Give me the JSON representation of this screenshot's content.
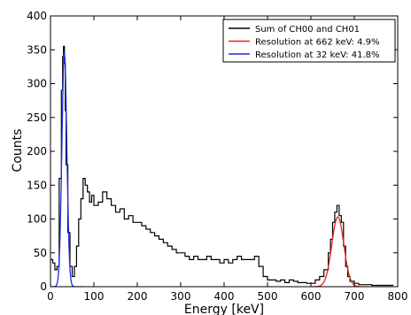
{
  "chart_data": {
    "type": "line",
    "title": "",
    "xlabel": "Energy [keV]",
    "ylabel": "Counts",
    "xlim": [
      0,
      800
    ],
    "ylim": [
      0,
      400
    ],
    "x_ticks": [
      0,
      100,
      200,
      300,
      400,
      500,
      600,
      700,
      800
    ],
    "y_ticks": [
      0,
      50,
      100,
      150,
      200,
      250,
      300,
      350,
      400
    ],
    "grid": false,
    "legend_position": "top-right",
    "series": [
      {
        "name": "Sum of CH00 and CH01",
        "color": "#000000",
        "style": "step",
        "x": [
          0,
          5,
          10,
          15,
          20,
          25,
          28,
          30,
          32,
          34,
          36,
          40,
          45,
          50,
          55,
          60,
          65,
          70,
          75,
          80,
          85,
          90,
          95,
          100,
          110,
          120,
          130,
          140,
          150,
          160,
          170,
          180,
          190,
          200,
          210,
          220,
          230,
          240,
          250,
          260,
          270,
          280,
          290,
          300,
          310,
          320,
          330,
          340,
          350,
          360,
          370,
          380,
          390,
          400,
          410,
          420,
          430,
          440,
          450,
          460,
          470,
          480,
          490,
          500,
          510,
          520,
          530,
          540,
          550,
          560,
          570,
          580,
          590,
          600,
          610,
          620,
          630,
          640,
          645,
          650,
          655,
          660,
          665,
          670,
          675,
          680,
          685,
          690,
          700,
          710,
          720,
          730,
          740,
          750,
          760,
          770,
          780
        ],
        "y": [
          40,
          35,
          25,
          30,
          160,
          290,
          340,
          355,
          330,
          260,
          180,
          80,
          30,
          15,
          30,
          60,
          100,
          130,
          160,
          150,
          140,
          125,
          135,
          120,
          125,
          140,
          130,
          120,
          110,
          115,
          100,
          105,
          95,
          95,
          90,
          85,
          80,
          75,
          70,
          65,
          60,
          55,
          50,
          50,
          45,
          40,
          45,
          40,
          40,
          45,
          40,
          40,
          35,
          40,
          35,
          40,
          45,
          40,
          40,
          40,
          45,
          30,
          15,
          10,
          10,
          8,
          10,
          6,
          10,
          8,
          6,
          6,
          5,
          5,
          10,
          15,
          25,
          50,
          70,
          95,
          110,
          120,
          105,
          95,
          60,
          30,
          15,
          8,
          5,
          3,
          3,
          3,
          2,
          2,
          2,
          2,
          2
        ]
      },
      {
        "name": "Resolution at 662 keV: 4.9%",
        "color": "#e8231c",
        "style": "gaussian",
        "amplitude": 103,
        "mean": 662,
        "sigma": 13.8,
        "x_range": [
          600,
          730
        ]
      },
      {
        "name": "Resolution at 32 keV: 41.8%",
        "color": "#1f2de0",
        "style": "gaussian",
        "amplitude": 345,
        "mean": 32,
        "sigma": 5.7,
        "x_range": [
          0,
          75
        ]
      }
    ]
  }
}
